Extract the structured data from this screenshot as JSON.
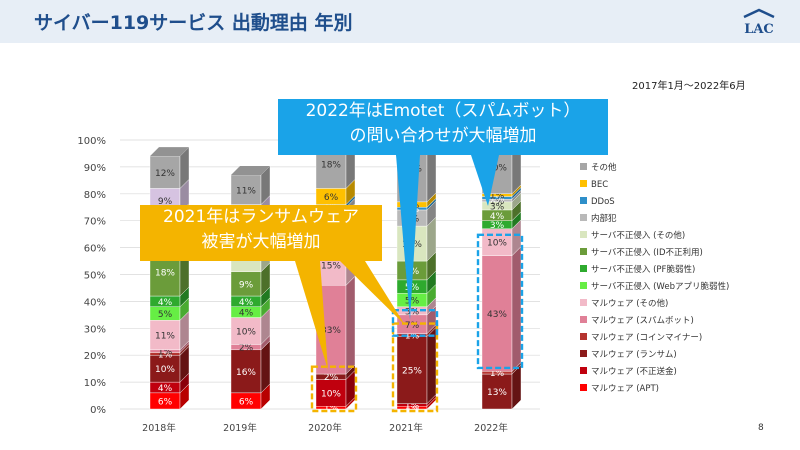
{
  "header": {
    "title": "サイバー119サービス 出動理由 年別",
    "logo_text": "LAC",
    "period": "2017年1月～2022年6月",
    "page_number": "8"
  },
  "callouts": {
    "emotet": {
      "line1": "2022年はEmotet（スパムボット）",
      "line2": "の問い合わせが大幅増加"
    },
    "ransom": {
      "line1": "2021年はランサムウェア",
      "line2": "被害が大幅増加"
    }
  },
  "colors": {
    "callout_blue": "#1aa3e8",
    "callout_orange": "#f4b400",
    "highlight_orange": "#f4b400",
    "highlight_blue": "#1aa3e8"
  },
  "chart_data": {
    "type": "bar",
    "stacked": true,
    "percent": true,
    "categories": [
      "2018年",
      "2019年",
      "2020年",
      "2021年",
      "2022年"
    ],
    "y_ticks": [
      "0%",
      "10%",
      "20%",
      "30%",
      "40%",
      "50%",
      "60%",
      "70%",
      "80%",
      "90%",
      "100%"
    ],
    "ylim": [
      0,
      100
    ],
    "legend_position": "right",
    "series": [
      {
        "name": "マルウェア (APT)",
        "color": "#ff0000",
        "values": [
          6,
          6,
          1,
          1,
          0
        ]
      },
      {
        "name": "マルウェア (不正送金)",
        "color": "#c0000e",
        "values": [
          4,
          0,
          10,
          1,
          0
        ]
      },
      {
        "name": "マルウェア (ランサム)",
        "color": "#8b1a1a",
        "values": [
          10,
          16,
          2,
          25,
          13
        ]
      },
      {
        "name": "マルウェア (コインマイナー)",
        "color": "#b5342f",
        "values": [
          1,
          0,
          0,
          1,
          1
        ]
      },
      {
        "name": "マルウェア (スパムボット)",
        "color": "#e08097",
        "values": [
          1,
          2,
          33,
          7,
          43
        ]
      },
      {
        "name": "マルウェア (その他)",
        "color": "#f2bac8",
        "values": [
          11,
          10,
          15,
          3,
          10
        ]
      },
      {
        "name": "サーバ不正侵入 (Webアプリ脆弱性)",
        "color": "#66ee44",
        "values": [
          5,
          4,
          3,
          5,
          0
        ]
      },
      {
        "name": "サーバ不正侵入 (PF脆弱性)",
        "color": "#2eaa2e",
        "values": [
          4,
          4,
          3,
          5,
          3
        ]
      },
      {
        "name": "サーバ不正侵入 (ID不正利用)",
        "color": "#6b9c3a",
        "values": [
          18,
          9,
          2,
          7,
          4
        ]
      },
      {
        "name": "サーバ不正侵入 (その他)",
        "color": "#d9e6bf",
        "values": [
          8,
          11,
          4,
          13,
          3
        ]
      },
      {
        "name": "内部犯",
        "color": "#b9b9b9",
        "values": [
          0,
          0,
          2,
          6,
          1
        ]
      },
      {
        "name": "DDoS",
        "color": "#2e8fc9",
        "values": [
          0,
          1,
          1,
          1,
          1
        ]
      },
      {
        "name": "BEC",
        "color": "#ffc000",
        "values": [
          5,
          4,
          6,
          2,
          1
        ]
      },
      {
        "name": "その他",
        "color": "#d6c3e1",
        "values": [
          9,
          9,
          0,
          0,
          0
        ]
      },
      {
        "name": "その他",
        "color": "#a6a6a6",
        "values": [
          12,
          11,
          18,
          25,
          20
        ]
      }
    ],
    "legend": [
      "その他",
      "BEC",
      "DDoS",
      "内部犯",
      "サーバ不正侵入 (その他)",
      "サーバ不正侵入 (ID不正利用)",
      "サーバ不正侵入 (PF脆弱性)",
      "サーバ不正侵入 (Webアプリ脆弱性)",
      "マルウェア (その他)",
      "マルウェア (スパムボット)",
      "マルウェア (コインマイナー)",
      "マルウェア (ランサム)",
      "マルウェア (不正送金)",
      "マルウェア (APT)"
    ],
    "legend_colors": [
      "#a6a6a6",
      "#ffc000",
      "#2e8fc9",
      "#b9b9b9",
      "#d9e6bf",
      "#6b9c3a",
      "#2eaa2e",
      "#66ee44",
      "#f2bac8",
      "#e08097",
      "#b5342f",
      "#8b1a1a",
      "#c0000e",
      "#ff0000"
    ]
  }
}
